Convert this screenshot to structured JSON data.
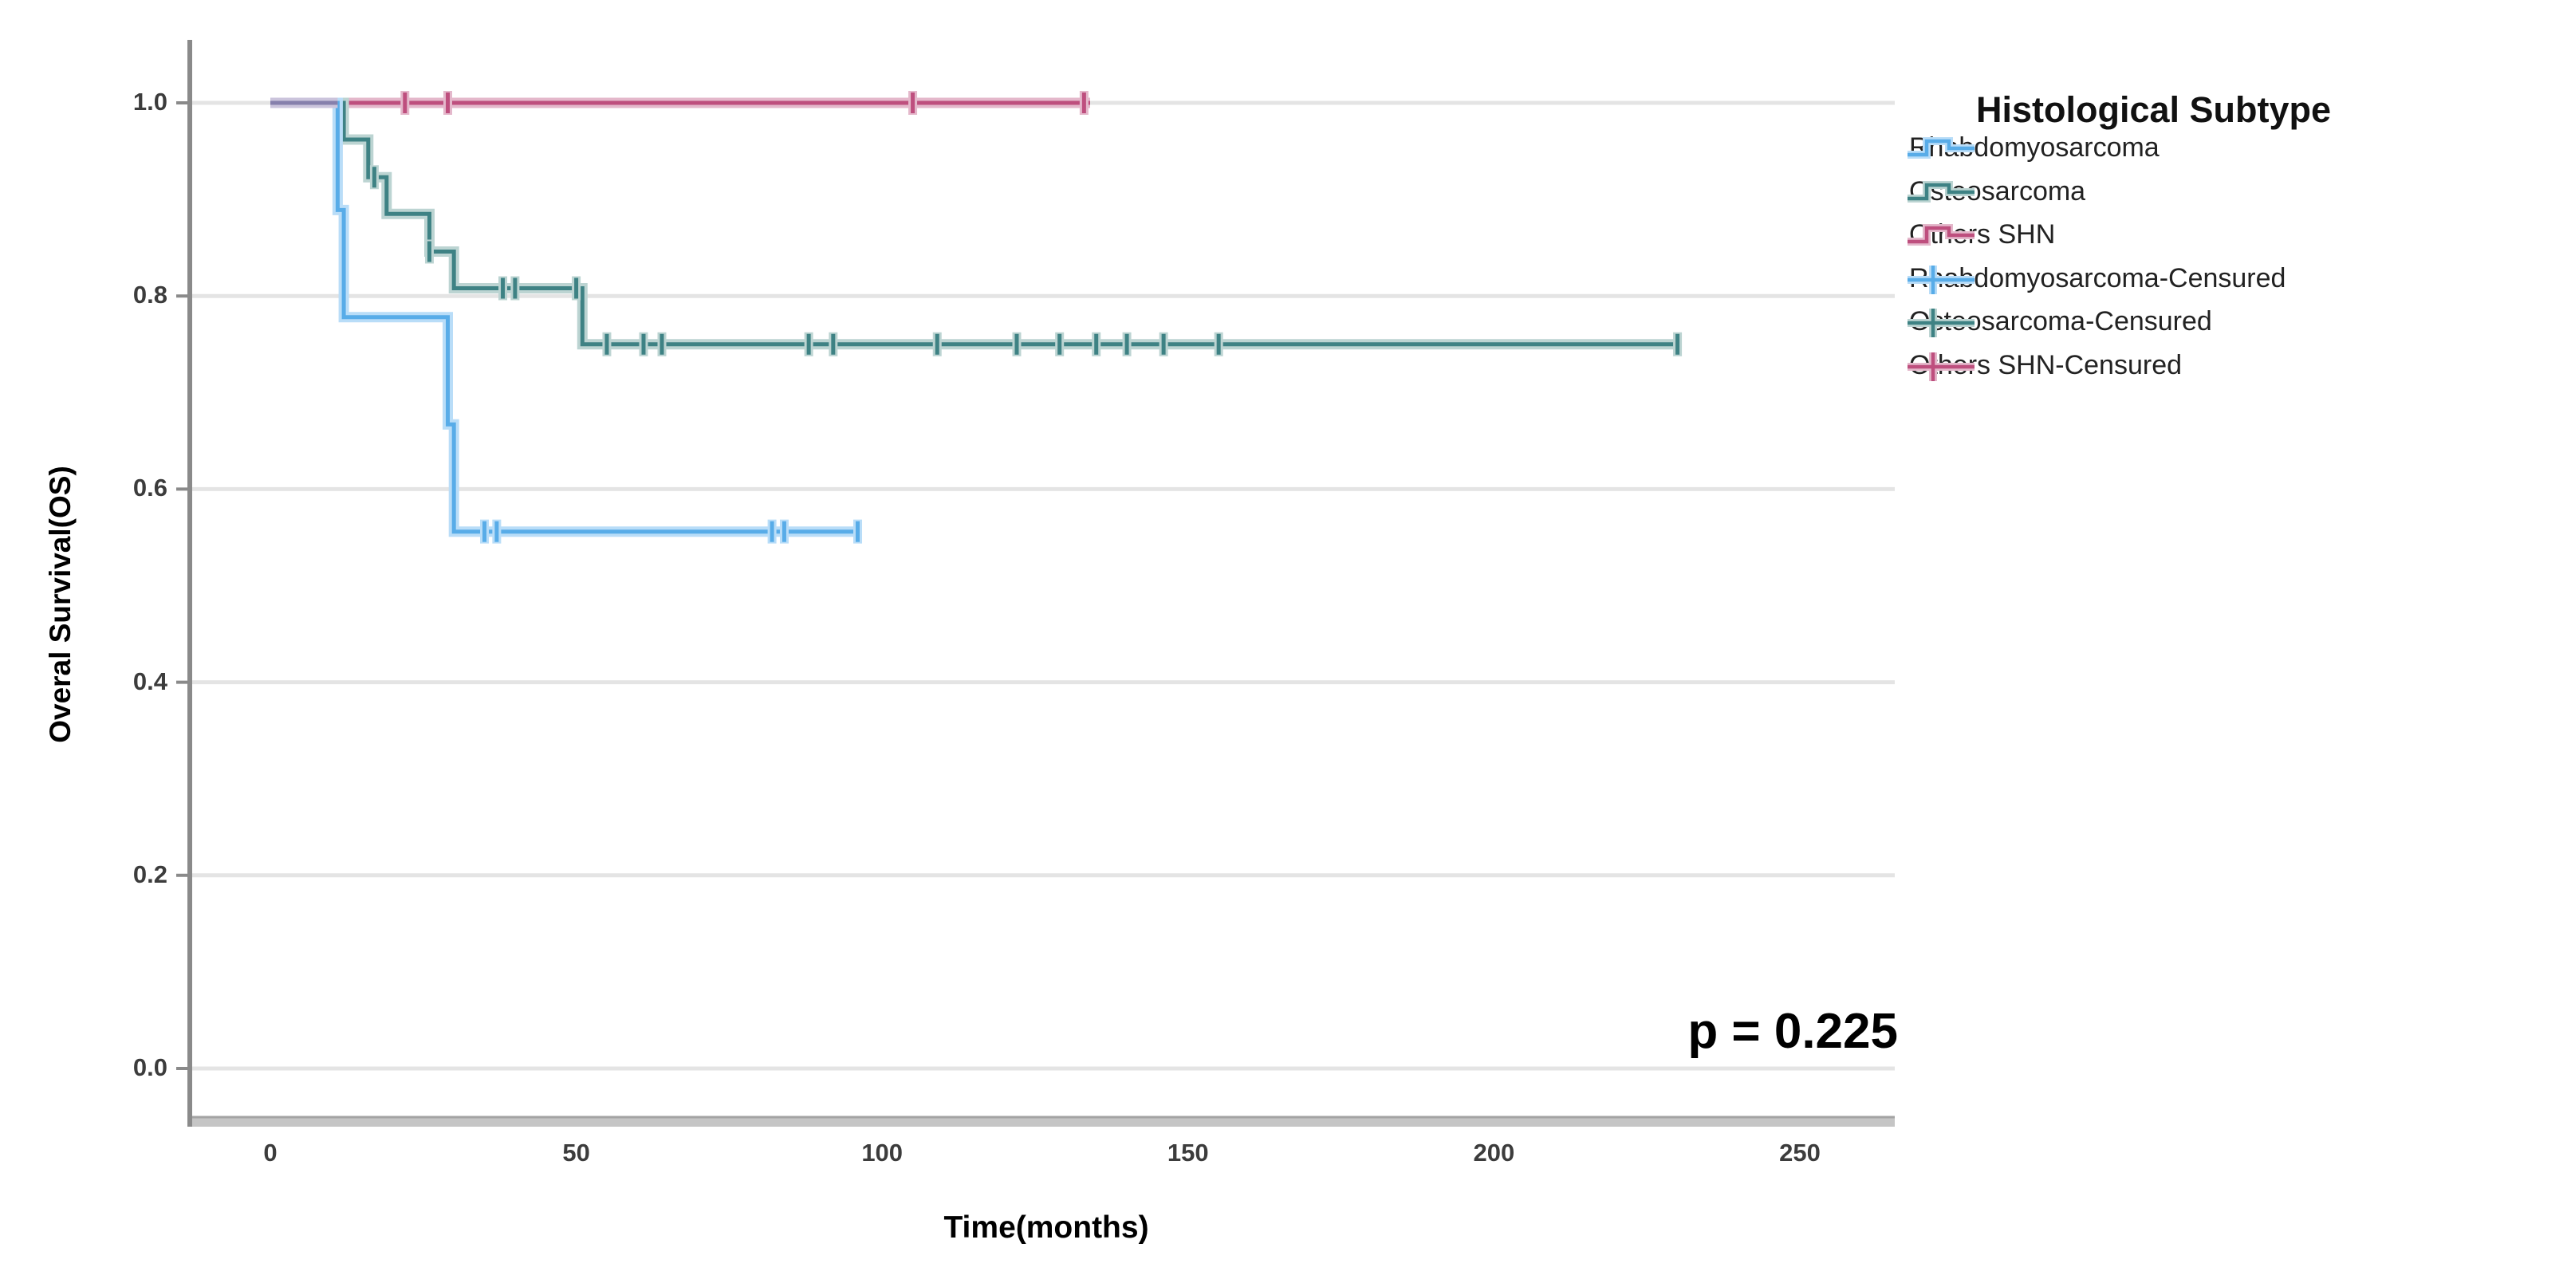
{
  "figure": {
    "p_value": "p = 0.225",
    "x_axis": {
      "title": "Time(months)",
      "tick_labels": [
        "0",
        "50",
        "100",
        "150",
        "200",
        "250"
      ],
      "tick_values": [
        0,
        50,
        100,
        150,
        200,
        250
      ]
    },
    "y_axis": {
      "title": "Overal Survival(OS)",
      "tick_labels": [
        "1.0",
        "0.8",
        "0.6",
        "0.4",
        "0.2",
        "0.0"
      ],
      "tick_values": [
        1.0,
        0.8,
        0.6,
        0.4,
        0.2,
        0.0
      ]
    },
    "legend": {
      "title": "Histological Subtype",
      "items": [
        {
          "label": "Rhabdomyosarcoma",
          "glyph": "step",
          "color": "#58ACE8",
          "halo": "#B9DDF8"
        },
        {
          "label": "Osteosarcoma",
          "glyph": "step",
          "color": "#3E8284",
          "halo": "#BCD4D2"
        },
        {
          "label": "Others SHN",
          "glyph": "step",
          "color": "#BE4F7E",
          "halo": "#E4B8CB"
        },
        {
          "label": "Rhabdomyosarcoma-Censured",
          "glyph": "censor",
          "color": "#58ACE8",
          "halo": "#B9DDF8"
        },
        {
          "label": "Osteosarcoma-Censured",
          "glyph": "censor",
          "color": "#3E8284",
          "halo": "#BCD4D2"
        },
        {
          "label": "Others SHN-Censured",
          "glyph": "censor",
          "color": "#BE4F7E",
          "halo": "#E4B8CB"
        }
      ]
    }
  },
  "chart_data": {
    "type": "line",
    "subtype": "kaplan-meier-step",
    "title": "",
    "xlabel": "Time(months)",
    "ylabel": "Overal Survival(OS)",
    "x_ticks": [
      0,
      50,
      100,
      150,
      200,
      250
    ],
    "y_ticks": [
      0.0,
      0.2,
      0.4,
      0.6,
      0.8,
      1.0
    ],
    "xlim": [
      -13,
      268
    ],
    "ylim": [
      -0.05,
      1.06
    ],
    "grid": "horizontal",
    "legend_position": "right",
    "p_value": "p = 0.225",
    "series": [
      {
        "name": "Others SHN",
        "color": "#BE4F7E",
        "halo": "#E4B8CB",
        "steps": [
          [
            0,
            1.0
          ],
          [
            134,
            1.0
          ]
        ],
        "censored": [
          [
            22,
            1.0
          ],
          [
            29,
            1.0
          ],
          [
            105,
            1.0
          ],
          [
            133,
            1.0
          ]
        ]
      },
      {
        "name": "Osteosarcoma",
        "color": "#3E8284",
        "halo": "#BCD4D2",
        "steps": [
          [
            0,
            1.0
          ],
          [
            12,
            0.962
          ],
          [
            16,
            0.923
          ],
          [
            19,
            0.885
          ],
          [
            26,
            0.846
          ],
          [
            30,
            0.808
          ],
          [
            51,
            0.75
          ],
          [
            230,
            0.75
          ]
        ],
        "censored": [
          [
            17,
            0.923
          ],
          [
            26,
            0.846
          ],
          [
            38,
            0.808
          ],
          [
            40,
            0.808
          ],
          [
            50,
            0.808
          ],
          [
            55,
            0.75
          ],
          [
            61,
            0.75
          ],
          [
            64,
            0.75
          ],
          [
            88,
            0.75
          ],
          [
            92,
            0.75
          ],
          [
            109,
            0.75
          ],
          [
            122,
            0.75
          ],
          [
            129,
            0.75
          ],
          [
            135,
            0.75
          ],
          [
            140,
            0.75
          ],
          [
            146,
            0.75
          ],
          [
            155,
            0.75
          ],
          [
            230,
            0.75
          ]
        ]
      },
      {
        "name": "Rhabdomyosarcoma",
        "color": "#58ACE8",
        "halo": "#B9DDF8",
        "steps": [
          [
            0,
            1.0
          ],
          [
            11,
            0.889
          ],
          [
            12,
            0.778
          ],
          [
            29,
            0.667
          ],
          [
            30,
            0.556
          ],
          [
            96,
            0.556
          ]
        ],
        "censored": [
          [
            35,
            0.556
          ],
          [
            37,
            0.556
          ],
          [
            82,
            0.556
          ],
          [
            84,
            0.556
          ],
          [
            96,
            0.556
          ]
        ]
      }
    ],
    "overlap_segment": {
      "x": [
        0,
        11
      ],
      "y": 1.0,
      "color": "#8680AC",
      "halo": "#CBC4DC"
    }
  }
}
